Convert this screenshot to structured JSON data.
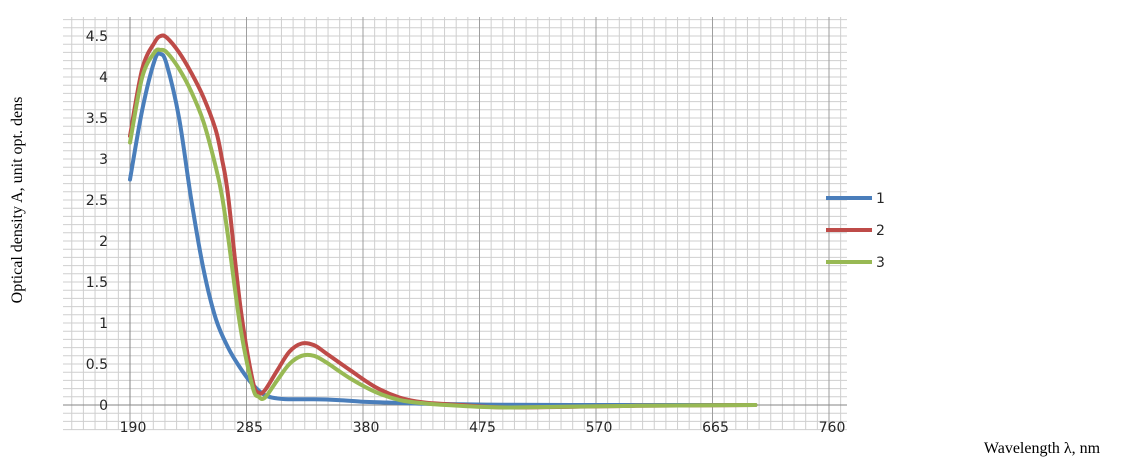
{
  "chart_data": {
    "type": "line",
    "title": "",
    "xlabel": "Wavelength λ, nm",
    "ylabel": "Optical density A, unit opt. dens",
    "x_ticks": [
      190,
      285,
      380,
      475,
      570,
      665,
      760
    ],
    "x_tick_labels": [
      "190",
      "285",
      "380",
      "475",
      "570",
      "665",
      "760"
    ],
    "y_ticks": [
      0,
      0.5,
      1,
      1.5,
      2,
      2.5,
      3,
      3.5,
      4,
      4.5
    ],
    "y_tick_labels": [
      "0",
      "0.5",
      "1",
      "1.5",
      "2",
      "2.5",
      "3",
      "3.5",
      "4",
      "4.5"
    ],
    "xlim": [
      190,
      760
    ],
    "ylim": [
      0,
      4.5
    ],
    "grid": true,
    "legend_position": "right",
    "series": [
      {
        "name": "1",
        "color": "#4a7ebb",
        "x": [
          190,
          200,
          210,
          215,
          220,
          230,
          240,
          250,
          260,
          270,
          280,
          290,
          300,
          310,
          320,
          340,
          360,
          380,
          400,
          430,
          480,
          550,
          700
        ],
        "y": [
          2.75,
          3.6,
          4.2,
          4.28,
          4.15,
          3.5,
          2.5,
          1.65,
          1.05,
          0.7,
          0.45,
          0.25,
          0.12,
          0.08,
          0.07,
          0.07,
          0.06,
          0.04,
          0.03,
          0.015,
          0.005,
          0.0,
          0.0
        ]
      },
      {
        "name": "2",
        "color": "#be4b48",
        "x": [
          190,
          200,
          210,
          215,
          220,
          230,
          240,
          250,
          260,
          265,
          270,
          280,
          290,
          295,
          300,
          310,
          320,
          330,
          340,
          350,
          370,
          390,
          410,
          430,
          460,
          500,
          600,
          700
        ],
        "y": [
          3.28,
          4.1,
          4.42,
          4.5,
          4.48,
          4.3,
          4.05,
          3.75,
          3.35,
          3.0,
          2.55,
          1.2,
          0.3,
          0.15,
          0.18,
          0.42,
          0.65,
          0.75,
          0.73,
          0.63,
          0.42,
          0.22,
          0.09,
          0.03,
          0.0,
          -0.03,
          -0.01,
          0.0
        ]
      },
      {
        "name": "3",
        "color": "#98b954",
        "x": [
          190,
          200,
          210,
          215,
          220,
          230,
          240,
          250,
          260,
          265,
          270,
          280,
          290,
          295,
          300,
          310,
          320,
          330,
          340,
          350,
          370,
          390,
          410,
          430,
          460,
          500,
          600,
          700
        ],
        "y": [
          3.2,
          4.0,
          4.3,
          4.33,
          4.3,
          4.1,
          3.82,
          3.45,
          2.9,
          2.55,
          2.05,
          0.95,
          0.22,
          0.1,
          0.09,
          0.3,
          0.5,
          0.6,
          0.6,
          0.52,
          0.32,
          0.16,
          0.06,
          0.02,
          -0.01,
          -0.03,
          -0.01,
          0.0
        ]
      }
    ]
  }
}
